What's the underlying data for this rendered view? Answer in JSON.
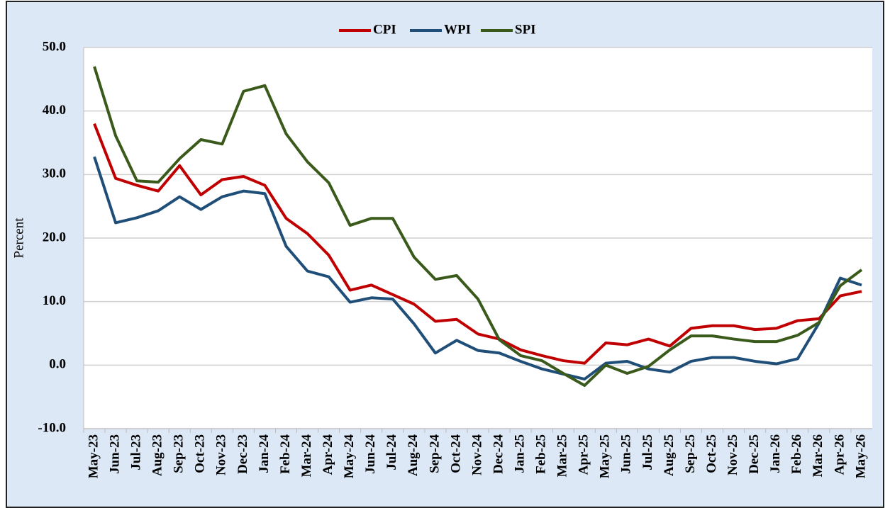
{
  "chart_data": {
    "type": "line",
    "y_label": "Percent",
    "categories": [
      "May-23",
      "Jun-23",
      "Jul-23",
      "Aug-23",
      "Sep-23",
      "Oct-23",
      "Nov-23",
      "Dec-23",
      "Jan-24",
      "Feb-24",
      "Mar-24",
      "Apr-24",
      "May-24",
      "Jun-24",
      "Jul-24",
      "Aug-24",
      "Sep-24",
      "Oct-24",
      "Nov-24",
      "Dec-24",
      "Jan-25",
      "Feb-25",
      "Mar-25",
      "Apr-25",
      "May-25",
      "Jun-25",
      "Jul-25",
      "Aug-25",
      "Sep-25",
      "Oct-25",
      "Nov-25",
      "Dec-25",
      "Jan-26",
      "Feb-26",
      "Mar-26",
      "Apr-26",
      "May-26"
    ],
    "series": [
      {
        "name": "CPI",
        "color": "#c00000",
        "values": [
          38.0,
          29.4,
          28.3,
          27.4,
          31.4,
          26.8,
          29.2,
          29.7,
          28.3,
          23.1,
          20.7,
          17.3,
          11.8,
          12.6,
          11.1,
          9.6,
          6.9,
          7.2,
          4.9,
          4.1,
          2.4,
          1.5,
          0.7,
          0.3,
          3.5,
          3.2,
          4.1,
          3.0,
          5.8,
          6.2,
          6.2,
          5.6,
          5.8,
          7.0,
          7.3,
          10.9,
          11.6
        ]
      },
      {
        "name": "WPI",
        "color": "#1f4e79",
        "values": [
          32.8,
          22.4,
          23.2,
          24.3,
          26.5,
          24.5,
          26.5,
          27.4,
          27.0,
          18.7,
          14.8,
          13.9,
          9.9,
          10.6,
          10.4,
          6.5,
          1.9,
          3.9,
          2.3,
          1.9,
          0.6,
          -0.6,
          -1.4,
          -2.2,
          0.3,
          0.6,
          -0.6,
          -1.1,
          0.6,
          1.2,
          1.2,
          0.6,
          0.2,
          1.0,
          6.6,
          13.7,
          12.6
        ]
      },
      {
        "name": "SPI",
        "color": "#3a5a1c",
        "values": [
          47.0,
          36.1,
          29.0,
          28.8,
          32.5,
          35.5,
          34.8,
          43.1,
          44.0,
          36.4,
          32.0,
          28.7,
          22.0,
          23.1,
          23.1,
          17.0,
          13.5,
          14.1,
          10.4,
          4.0,
          1.5,
          0.7,
          -1.3,
          -3.2,
          0.0,
          -1.3,
          -0.2,
          2.4,
          4.6,
          4.6,
          4.1,
          3.7,
          3.7,
          4.7,
          6.7,
          12.5,
          15.0
        ]
      }
    ],
    "ylim": [
      -10,
      50
    ],
    "yticks": [
      {
        "value": -10,
        "label": "-10.0"
      },
      {
        "value": 0,
        "label": "0.0"
      },
      {
        "value": 10,
        "label": "10.0"
      },
      {
        "value": 20,
        "label": "20.0"
      },
      {
        "value": 30,
        "label": "30.0"
      },
      {
        "value": 40,
        "label": "40.0"
      },
      {
        "value": 50,
        "label": "50.0"
      }
    ],
    "grid": true,
    "legend": "top"
  }
}
